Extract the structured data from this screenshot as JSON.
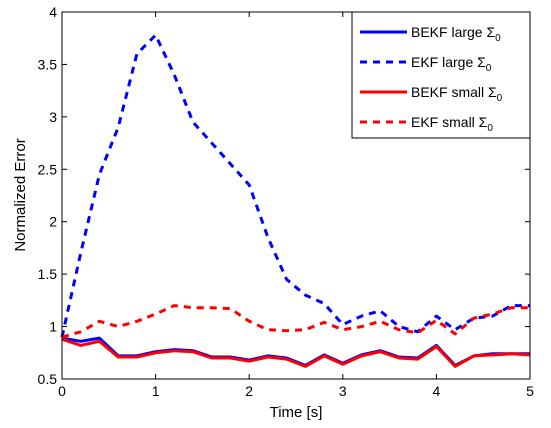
{
  "chart_data": {
    "type": "line",
    "title": "",
    "xlabel": "Time [s]",
    "ylabel": "Normalized Error",
    "xlim": [
      0,
      5
    ],
    "ylim": [
      0.5,
      4
    ],
    "xticks": [
      0,
      1,
      2,
      3,
      4,
      5
    ],
    "xtick_labels": [
      "0",
      "1",
      "2",
      "3",
      "4",
      "5"
    ],
    "yticks": [
      0.5,
      1,
      1.5,
      2,
      2.5,
      3,
      3.5,
      4
    ],
    "ytick_labels": [
      "0.5",
      "1",
      "1.5",
      "2",
      "2.5",
      "3",
      "3.5",
      "4"
    ],
    "grid": false,
    "legend_position": "top-right",
    "series": [
      {
        "name": "BEKF large Σ",
        "name_main": "BEKF large Σ",
        "name_sub": "0",
        "color": "#0000ff",
        "dash": "solid",
        "x": [
          0,
          0.2,
          0.4,
          0.6,
          0.8,
          1.0,
          1.2,
          1.4,
          1.6,
          1.8,
          2.0,
          2.2,
          2.4,
          2.6,
          2.8,
          3.0,
          3.2,
          3.4,
          3.6,
          3.8,
          4.0,
          4.2,
          4.4,
          4.6,
          4.8,
          5.0
        ],
        "y": [
          0.89,
          0.86,
          0.89,
          0.72,
          0.72,
          0.76,
          0.78,
          0.77,
          0.71,
          0.71,
          0.68,
          0.72,
          0.7,
          0.63,
          0.73,
          0.65,
          0.73,
          0.77,
          0.71,
          0.7,
          0.82,
          0.63,
          0.72,
          0.74,
          0.74,
          0.74
        ]
      },
      {
        "name": "EKF large Σ",
        "name_main": "EKF large Σ",
        "name_sub": "0",
        "color": "#0000ff",
        "dash": "dashed",
        "x": [
          0,
          0.2,
          0.4,
          0.6,
          0.8,
          1.0,
          1.2,
          1.4,
          1.6,
          1.8,
          2.0,
          2.2,
          2.4,
          2.6,
          2.8,
          3.0,
          3.2,
          3.4,
          3.6,
          3.8,
          4.0,
          4.2,
          4.4,
          4.6,
          4.8,
          5.0
        ],
        "y": [
          0.9,
          1.7,
          2.45,
          2.9,
          3.6,
          3.78,
          3.4,
          2.95,
          2.75,
          2.55,
          2.35,
          1.85,
          1.45,
          1.3,
          1.22,
          1.02,
          1.1,
          1.15,
          1.0,
          0.95,
          1.1,
          0.97,
          1.08,
          1.1,
          1.2,
          1.2
        ]
      },
      {
        "name": "BEKF small Σ",
        "name_main": "BEKF small Σ",
        "name_sub": "0",
        "color": "#ff0000",
        "dash": "solid",
        "x": [
          0,
          0.2,
          0.4,
          0.6,
          0.8,
          1.0,
          1.2,
          1.4,
          1.6,
          1.8,
          2.0,
          2.2,
          2.4,
          2.6,
          2.8,
          3.0,
          3.2,
          3.4,
          3.6,
          3.8,
          4.0,
          4.2,
          4.4,
          4.6,
          4.8,
          5.0
        ],
        "y": [
          0.88,
          0.82,
          0.86,
          0.71,
          0.71,
          0.75,
          0.77,
          0.76,
          0.7,
          0.7,
          0.67,
          0.71,
          0.69,
          0.62,
          0.72,
          0.64,
          0.72,
          0.76,
          0.7,
          0.69,
          0.81,
          0.62,
          0.72,
          0.73,
          0.74,
          0.73
        ]
      },
      {
        "name": "EKF small Σ",
        "name_main": "EKF small Σ",
        "name_sub": "0",
        "color": "#ff0000",
        "dash": "dashed",
        "x": [
          0,
          0.2,
          0.4,
          0.6,
          0.8,
          1.0,
          1.2,
          1.4,
          1.6,
          1.8,
          2.0,
          2.2,
          2.4,
          2.6,
          2.8,
          3.0,
          3.2,
          3.4,
          3.6,
          3.8,
          4.0,
          4.2,
          4.4,
          4.6,
          4.8,
          5.0
        ],
        "y": [
          0.9,
          0.95,
          1.05,
          1.0,
          1.05,
          1.12,
          1.2,
          1.18,
          1.18,
          1.17,
          1.05,
          0.97,
          0.96,
          0.97,
          1.04,
          0.97,
          1.0,
          1.05,
          0.97,
          0.94,
          1.06,
          0.93,
          1.08,
          1.12,
          1.18,
          1.18
        ]
      }
    ]
  }
}
